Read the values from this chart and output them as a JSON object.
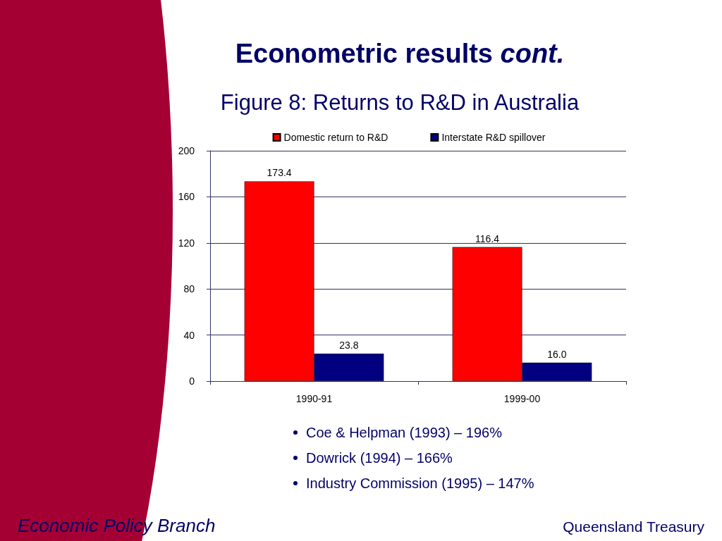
{
  "chart_data": {
    "type": "bar",
    "title": "Econometric results cont.",
    "subtitle": "Figure 8: Returns to R&D in Australia",
    "categories": [
      "1990-91",
      "1999-00"
    ],
    "series": [
      {
        "name": "Domestic return to R&D",
        "color": "#ff0000",
        "values": [
          173.4,
          116.4
        ],
        "value_labels": [
          "173.4",
          "116.4"
        ]
      },
      {
        "name": "Interstate R&D spillover",
        "color": "#000080",
        "values": [
          23.8,
          16.0
        ],
        "value_labels": [
          "23.8",
          "16.0"
        ]
      }
    ],
    "ylim": [
      0,
      200
    ],
    "yticks": [
      0,
      40,
      80,
      120,
      160,
      200
    ],
    "grid": "y",
    "legend": "top",
    "annotations": [
      "Coe & Helpman (1993) – 196%",
      "Dowrick (1994) – 166%",
      "Industry Commission (1995) – 147%",
      "Economic Policy Branch",
      "Queensland Treasury"
    ]
  }
}
